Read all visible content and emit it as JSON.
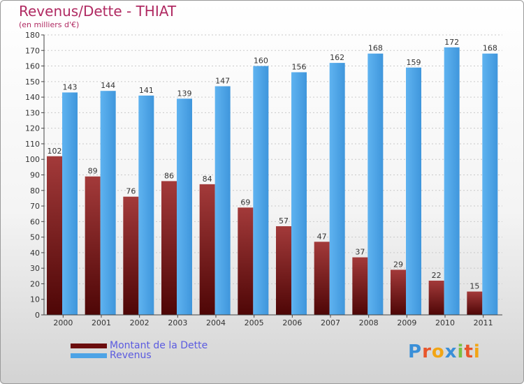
{
  "header": {
    "title": "Revenus/Dette - THIAT",
    "subtitle": "(en milliers d'€)"
  },
  "chart_data": {
    "type": "bar",
    "categories": [
      "2000",
      "2001",
      "2002",
      "2003",
      "2004",
      "2005",
      "2006",
      "2007",
      "2008",
      "2009",
      "2010",
      "2011"
    ],
    "series": [
      {
        "name": "Montant de la Dette",
        "values": [
          102,
          89,
          76,
          86,
          84,
          69,
          57,
          47,
          37,
          29,
          22,
          15
        ],
        "color": "#7a1c1c"
      },
      {
        "name": "Revenus",
        "values": [
          143,
          144,
          141,
          139,
          147,
          160,
          156,
          162,
          168,
          159,
          172,
          168
        ],
        "color": "#4da3e6"
      }
    ],
    "yticks": [
      "0",
      "10",
      "20",
      "30",
      "40",
      "50",
      "60",
      "70",
      "80",
      "90",
      "100",
      "110",
      "120",
      "130",
      "140",
      "150",
      "160",
      "170",
      "180"
    ],
    "ylim": [
      0,
      180
    ],
    "grid": true,
    "legend": "bottom-left"
  },
  "legend": {
    "items": [
      {
        "label": "Montant de la Dette",
        "color": "#6b0d0d"
      },
      {
        "label": "Revenus",
        "color": "#4da3e6"
      }
    ]
  },
  "logo": {
    "letters": [
      "P",
      "r",
      "o",
      "x",
      "i",
      "t",
      "i"
    ],
    "colors": [
      "#3a8fd8",
      "#e8552a",
      "#f2a515",
      "#3a8fd8",
      "#7bc043",
      "#e8552a",
      "#f2a515"
    ]
  }
}
